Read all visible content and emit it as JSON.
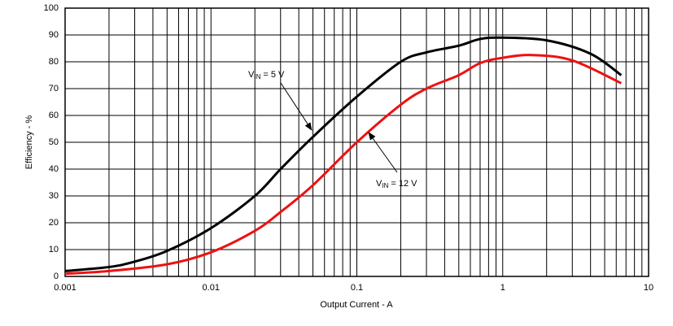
{
  "chart_data": {
    "type": "line",
    "x_label": "Output Current - A",
    "y_label": "Efficiency - %",
    "log_x": true,
    "grid": true,
    "minor_grid": true,
    "xlim": [
      0.001,
      10
    ],
    "xticks": [
      0.001,
      0.01,
      0.1,
      1,
      10
    ],
    "ylim": [
      0,
      100
    ],
    "yticks": [
      0,
      10,
      20,
      30,
      40,
      50,
      60,
      70,
      80,
      90,
      100
    ],
    "series": [
      {
        "color": "#000000",
        "x": [
          0.001,
          0.002,
          0.003,
          0.005,
          0.01,
          0.02,
          0.03,
          0.05,
          0.1,
          0.2,
          0.3,
          0.5,
          0.7,
          1,
          2,
          4,
          6.5
        ],
        "values": [
          2,
          3.5,
          5.5,
          9.5,
          18,
          30,
          40,
          52,
          67,
          80,
          83.5,
          86,
          88.5,
          89,
          88,
          83,
          75
        ]
      },
      {
        "color": "#ee1111",
        "x": [
          0.001,
          0.002,
          0.005,
          0.01,
          0.02,
          0.03,
          0.05,
          0.1,
          0.2,
          0.3,
          0.5,
          0.7,
          1,
          1.6,
          3,
          6.5
        ],
        "values": [
          1,
          2,
          4.5,
          9,
          17,
          24,
          34,
          50,
          64,
          70,
          75,
          79.5,
          81.5,
          82.5,
          80.5,
          72
        ]
      }
    ],
    "annotations": [
      {
        "base": "V",
        "sub": "IN",
        "rest": "= 5 V"
      },
      {
        "base": "V",
        "sub": "IN",
        "rest": "= 12 V"
      }
    ]
  }
}
